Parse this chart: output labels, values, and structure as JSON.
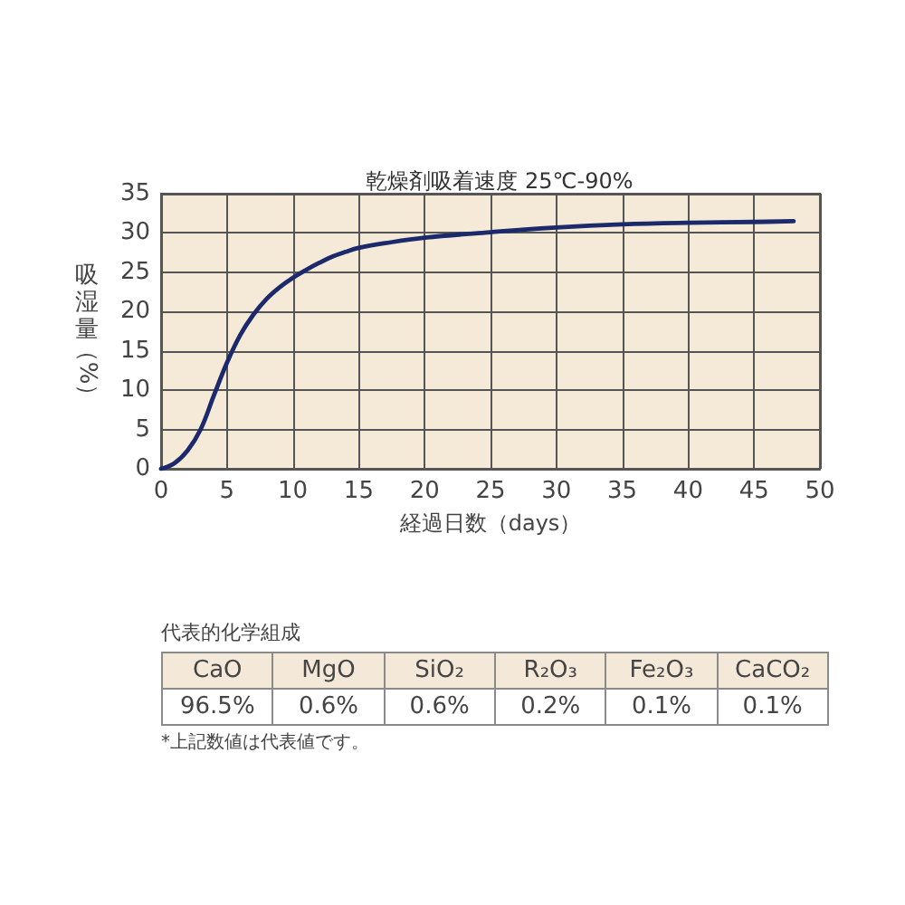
{
  "chart_data": [
    {
      "type": "line",
      "title": "乾燥剤吸着速度 25℃-90%",
      "xlabel": "経過日数（days）",
      "ylabel": "吸湿量（%）",
      "x": [
        0,
        1,
        2,
        3,
        4,
        5,
        6,
        7,
        8,
        9,
        10,
        11,
        12,
        13,
        14,
        15,
        17,
        20,
        25,
        30,
        35,
        40,
        45,
        48
      ],
      "values": [
        0,
        0.7,
        2.3,
        5.0,
        9.3,
        13.5,
        17.0,
        19.6,
        21.6,
        23.1,
        24.3,
        25.3,
        26.2,
        27.0,
        27.6,
        28.1,
        28.7,
        29.4,
        30.1,
        30.7,
        31.1,
        31.3,
        31.4,
        31.5
      ],
      "color": "#1c2a6c",
      "xlim": [
        0,
        50
      ],
      "xticks": [
        0,
        5,
        10,
        15,
        20,
        25,
        30,
        35,
        40,
        45,
        50
      ],
      "ylim": [
        0,
        35
      ],
      "yticks": [
        0,
        5,
        10,
        15,
        20,
        25,
        30,
        35
      ],
      "grid": true
    },
    {
      "type": "other",
      "title": "代表的化学組成",
      "categories": [
        "CaO",
        "MgO",
        "SiO₂",
        "R₂O₃",
        "Fe₂O₃",
        "CaCO₂"
      ],
      "values": [
        96.5,
        0.6,
        0.6,
        0.2,
        0.1,
        0.1
      ],
      "value_labels": [
        "96.5%",
        "0.6%",
        "0.6%",
        "0.2%",
        "0.1%",
        "0.1%"
      ],
      "annotations": [
        "*上記数値は代表値です。"
      ]
    }
  ]
}
